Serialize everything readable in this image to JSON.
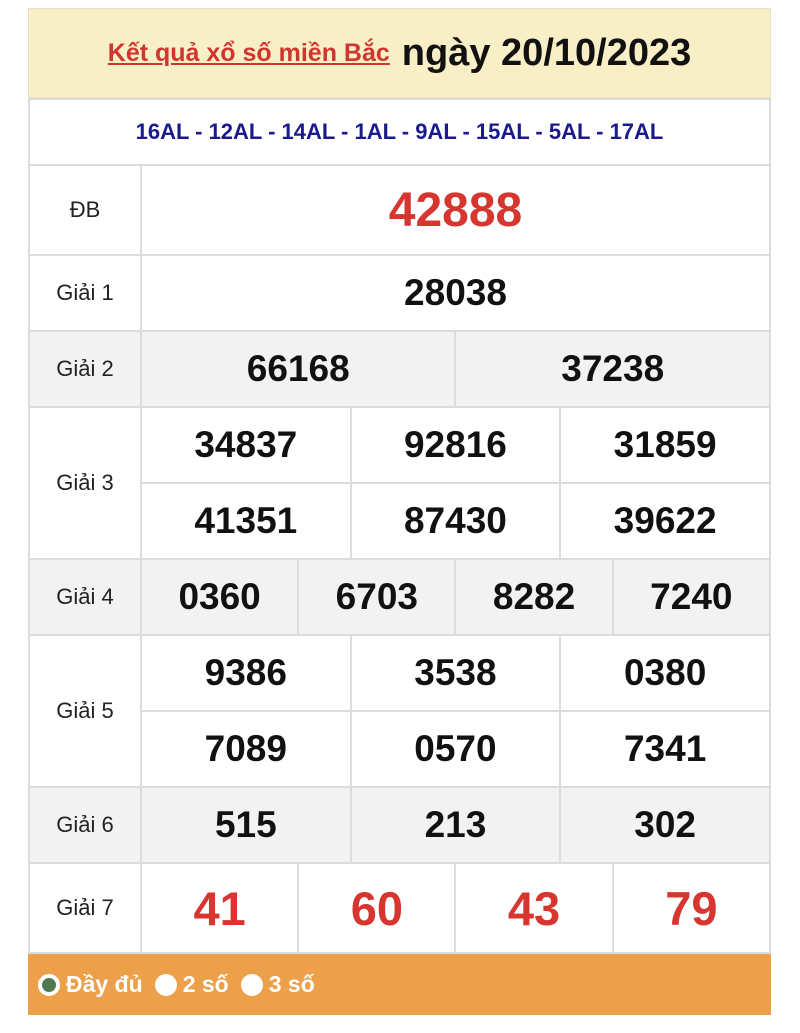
{
  "header": {
    "title_link": "Kết quả xổ số miền Bắc",
    "date": "ngày 20/10/2023"
  },
  "codes": "16AL - 12AL - 14AL - 1AL - 9AL - 15AL - 5AL - 17AL",
  "prizes": {
    "db": {
      "label": "ĐB",
      "numbers": [
        "42888"
      ]
    },
    "g1": {
      "label": "Giải 1",
      "numbers": [
        "28038"
      ]
    },
    "g2": {
      "label": "Giải 2",
      "numbers": [
        "66168",
        "37238"
      ]
    },
    "g3": {
      "label": "Giải 3",
      "numbers": [
        "34837",
        "92816",
        "31859",
        "41351",
        "87430",
        "39622"
      ]
    },
    "g4": {
      "label": "Giải 4",
      "numbers": [
        "0360",
        "6703",
        "8282",
        "7240"
      ]
    },
    "g5": {
      "label": "Giải 5",
      "numbers": [
        "9386",
        "3538",
        "0380",
        "7089",
        "0570",
        "7341"
      ]
    },
    "g6": {
      "label": "Giải 6",
      "numbers": [
        "515",
        "213",
        "302"
      ]
    },
    "g7": {
      "label": "Giải 7",
      "numbers": [
        "41",
        "60",
        "43",
        "79"
      ]
    }
  },
  "footer": {
    "options": [
      {
        "label": "Đầy đủ",
        "selected": true
      },
      {
        "label": "2 số",
        "selected": false
      },
      {
        "label": "3 số",
        "selected": false
      }
    ]
  },
  "colors": {
    "header_bg": "#f9efc6",
    "accent_red": "#d6362f",
    "code_blue": "#1a1a8c",
    "footer_bg": "#eca04a"
  }
}
